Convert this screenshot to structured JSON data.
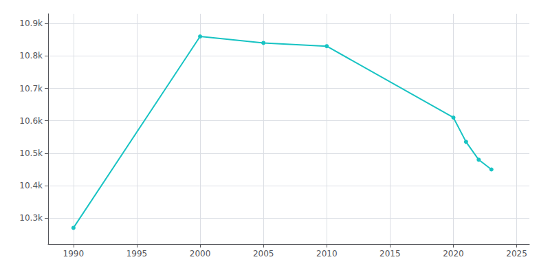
{
  "chart_data": {
    "type": "line",
    "x": [
      1990,
      2000,
      2005,
      2010,
      2020,
      2021,
      2022,
      2023
    ],
    "values": [
      10270,
      10860,
      10840,
      10830,
      10610,
      10535,
      10480,
      10450
    ],
    "color": "#17c3c3",
    "marker": "circle",
    "xlim": [
      1988,
      2026
    ],
    "ylim": [
      10220,
      10930
    ],
    "xticks": [
      1990,
      1995,
      2000,
      2005,
      2010,
      2015,
      2020,
      2025
    ],
    "yticks": [
      {
        "value": 10300,
        "label": "10.3k"
      },
      {
        "value": 10400,
        "label": "10.4k"
      },
      {
        "value": 10500,
        "label": "10.5k"
      },
      {
        "value": 10600,
        "label": "10.6k"
      },
      {
        "value": 10700,
        "label": "10.7k"
      },
      {
        "value": 10800,
        "label": "10.8k"
      },
      {
        "value": 10900,
        "label": "10.9k"
      }
    ],
    "grid": true
  }
}
